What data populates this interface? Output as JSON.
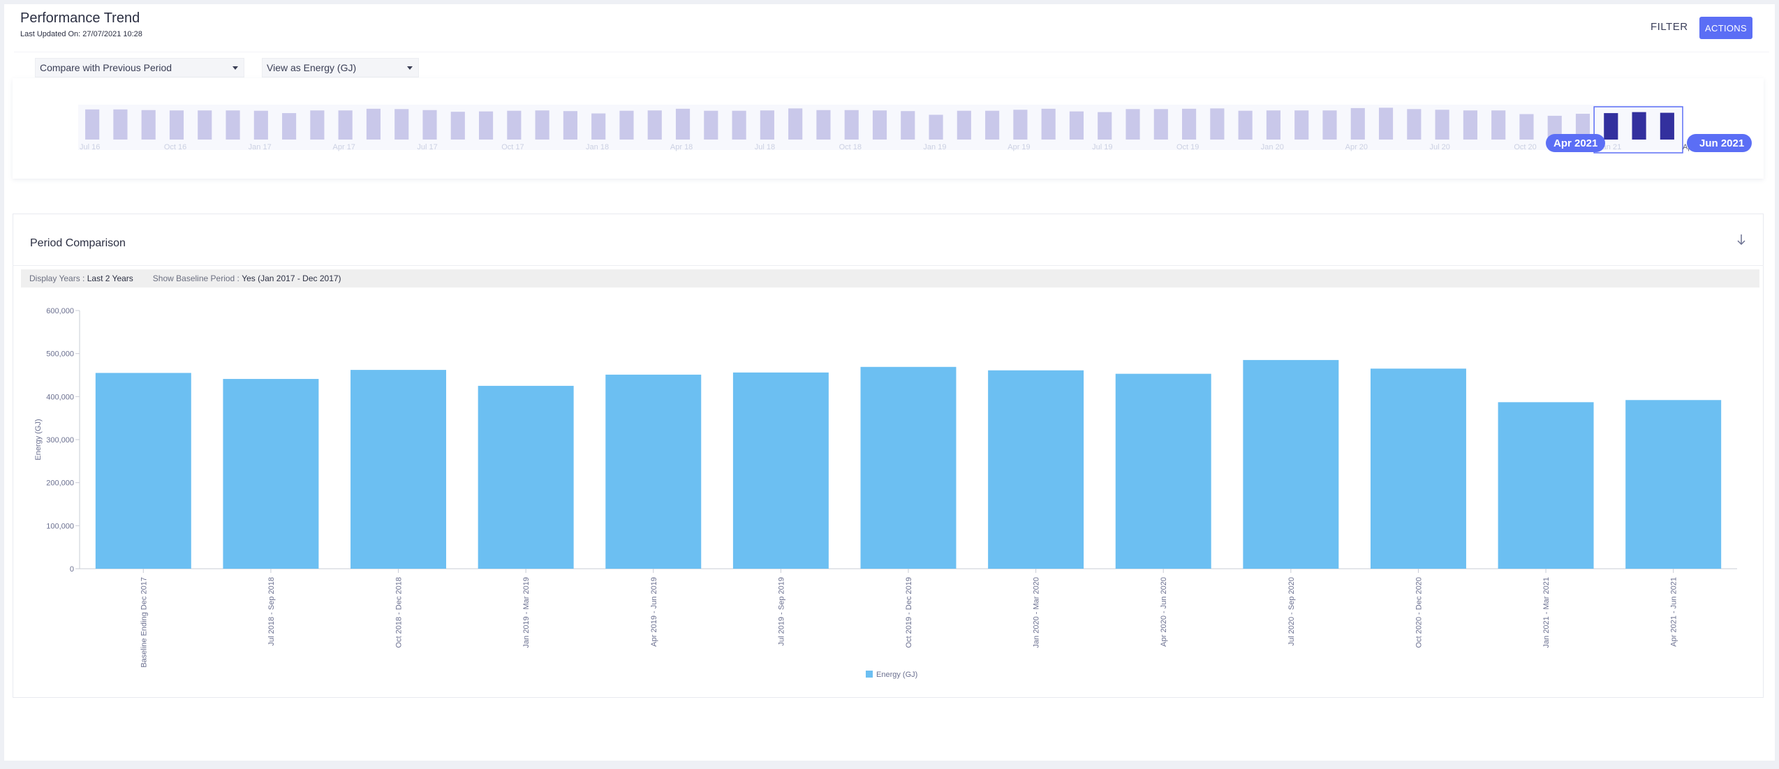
{
  "header": {
    "title": "Performance Trend",
    "last_updated": "Last Updated On: 27/07/2021 10:28",
    "filter_label": "FILTER",
    "actions_label": "ACTIONS"
  },
  "toolbar": {
    "compare_select": "Compare with Previous Period",
    "view_select": "View as Energy (GJ)"
  },
  "navigator": {
    "x_labels": [
      "Jul 16",
      "Oct 16",
      "Jan 17",
      "Apr 17",
      "Jul 17",
      "Oct 17",
      "Jan 18",
      "Apr 18",
      "Jul 18",
      "Oct 18",
      "Jan 19",
      "Apr 19",
      "Jul 19",
      "Oct 19",
      "Jan 20",
      "Apr 20",
      "Jul 20",
      "Oct 20",
      "Jan 21",
      "Apr 21"
    ],
    "bar_fractions": [
      0.9,
      0.9,
      0.88,
      0.87,
      0.87,
      0.87,
      0.86,
      0.79,
      0.87,
      0.87,
      0.92,
      0.91,
      0.88,
      0.83,
      0.84,
      0.86,
      0.87,
      0.85,
      0.78,
      0.86,
      0.87,
      0.92,
      0.86,
      0.86,
      0.87,
      0.93,
      0.88,
      0.88,
      0.87,
      0.85,
      0.74,
      0.86,
      0.86,
      0.89,
      0.92,
      0.84,
      0.82,
      0.91,
      0.91,
      0.92,
      0.93,
      0.86,
      0.87,
      0.87,
      0.87,
      0.94,
      0.95,
      0.91,
      0.89,
      0.87,
      0.87,
      0.76,
      0.71,
      0.77,
      0.79,
      0.82,
      0.8
    ],
    "selected_count": 3,
    "range_start": "Apr 2021",
    "range_end": "Jun 2021",
    "bar_color": "#c9c8ea",
    "selected_color": "#33309e"
  },
  "panel": {
    "title": "Period Comparison",
    "download_icon": "arrow-down-icon",
    "display_years_label": "Display Years :",
    "display_years_value": "Last 2 Years",
    "baseline_label": "Show Baseline Period :",
    "baseline_value": "Yes (Jan 2017 - Dec 2017)"
  },
  "chart_data": {
    "type": "bar",
    "categories": [
      "Baseline Ending Dec 2017",
      "Jul 2018 - Sep 2018",
      "Oct 2018 - Dec 2018",
      "Jan 2019 - Mar 2019",
      "Apr 2019 - Jun 2019",
      "Jul 2019 - Sep 2019",
      "Oct 2019 - Dec 2019",
      "Jan 2020 - Mar 2020",
      "Apr 2020 - Jun 2020",
      "Jul 2020 - Sep 2020",
      "Oct 2020 - Dec 2020",
      "Jan 2021 - Mar 2021",
      "Apr 2021 - Jun 2021"
    ],
    "series": [
      {
        "name": "Energy (GJ)",
        "values": [
          455000,
          441000,
          462000,
          425000,
          451000,
          456000,
          469000,
          461000,
          453000,
          485000,
          465000,
          387000,
          392000
        ]
      }
    ],
    "ylabel": "Energy (GJ)",
    "ylim": [
      0,
      600000
    ],
    "yticks": [
      "0",
      "100,000",
      "200,000",
      "300,000",
      "400,000",
      "500,000",
      "600,000"
    ],
    "bar_color": "#6cbff2",
    "legend_position": "bottom-center",
    "grid": false
  }
}
